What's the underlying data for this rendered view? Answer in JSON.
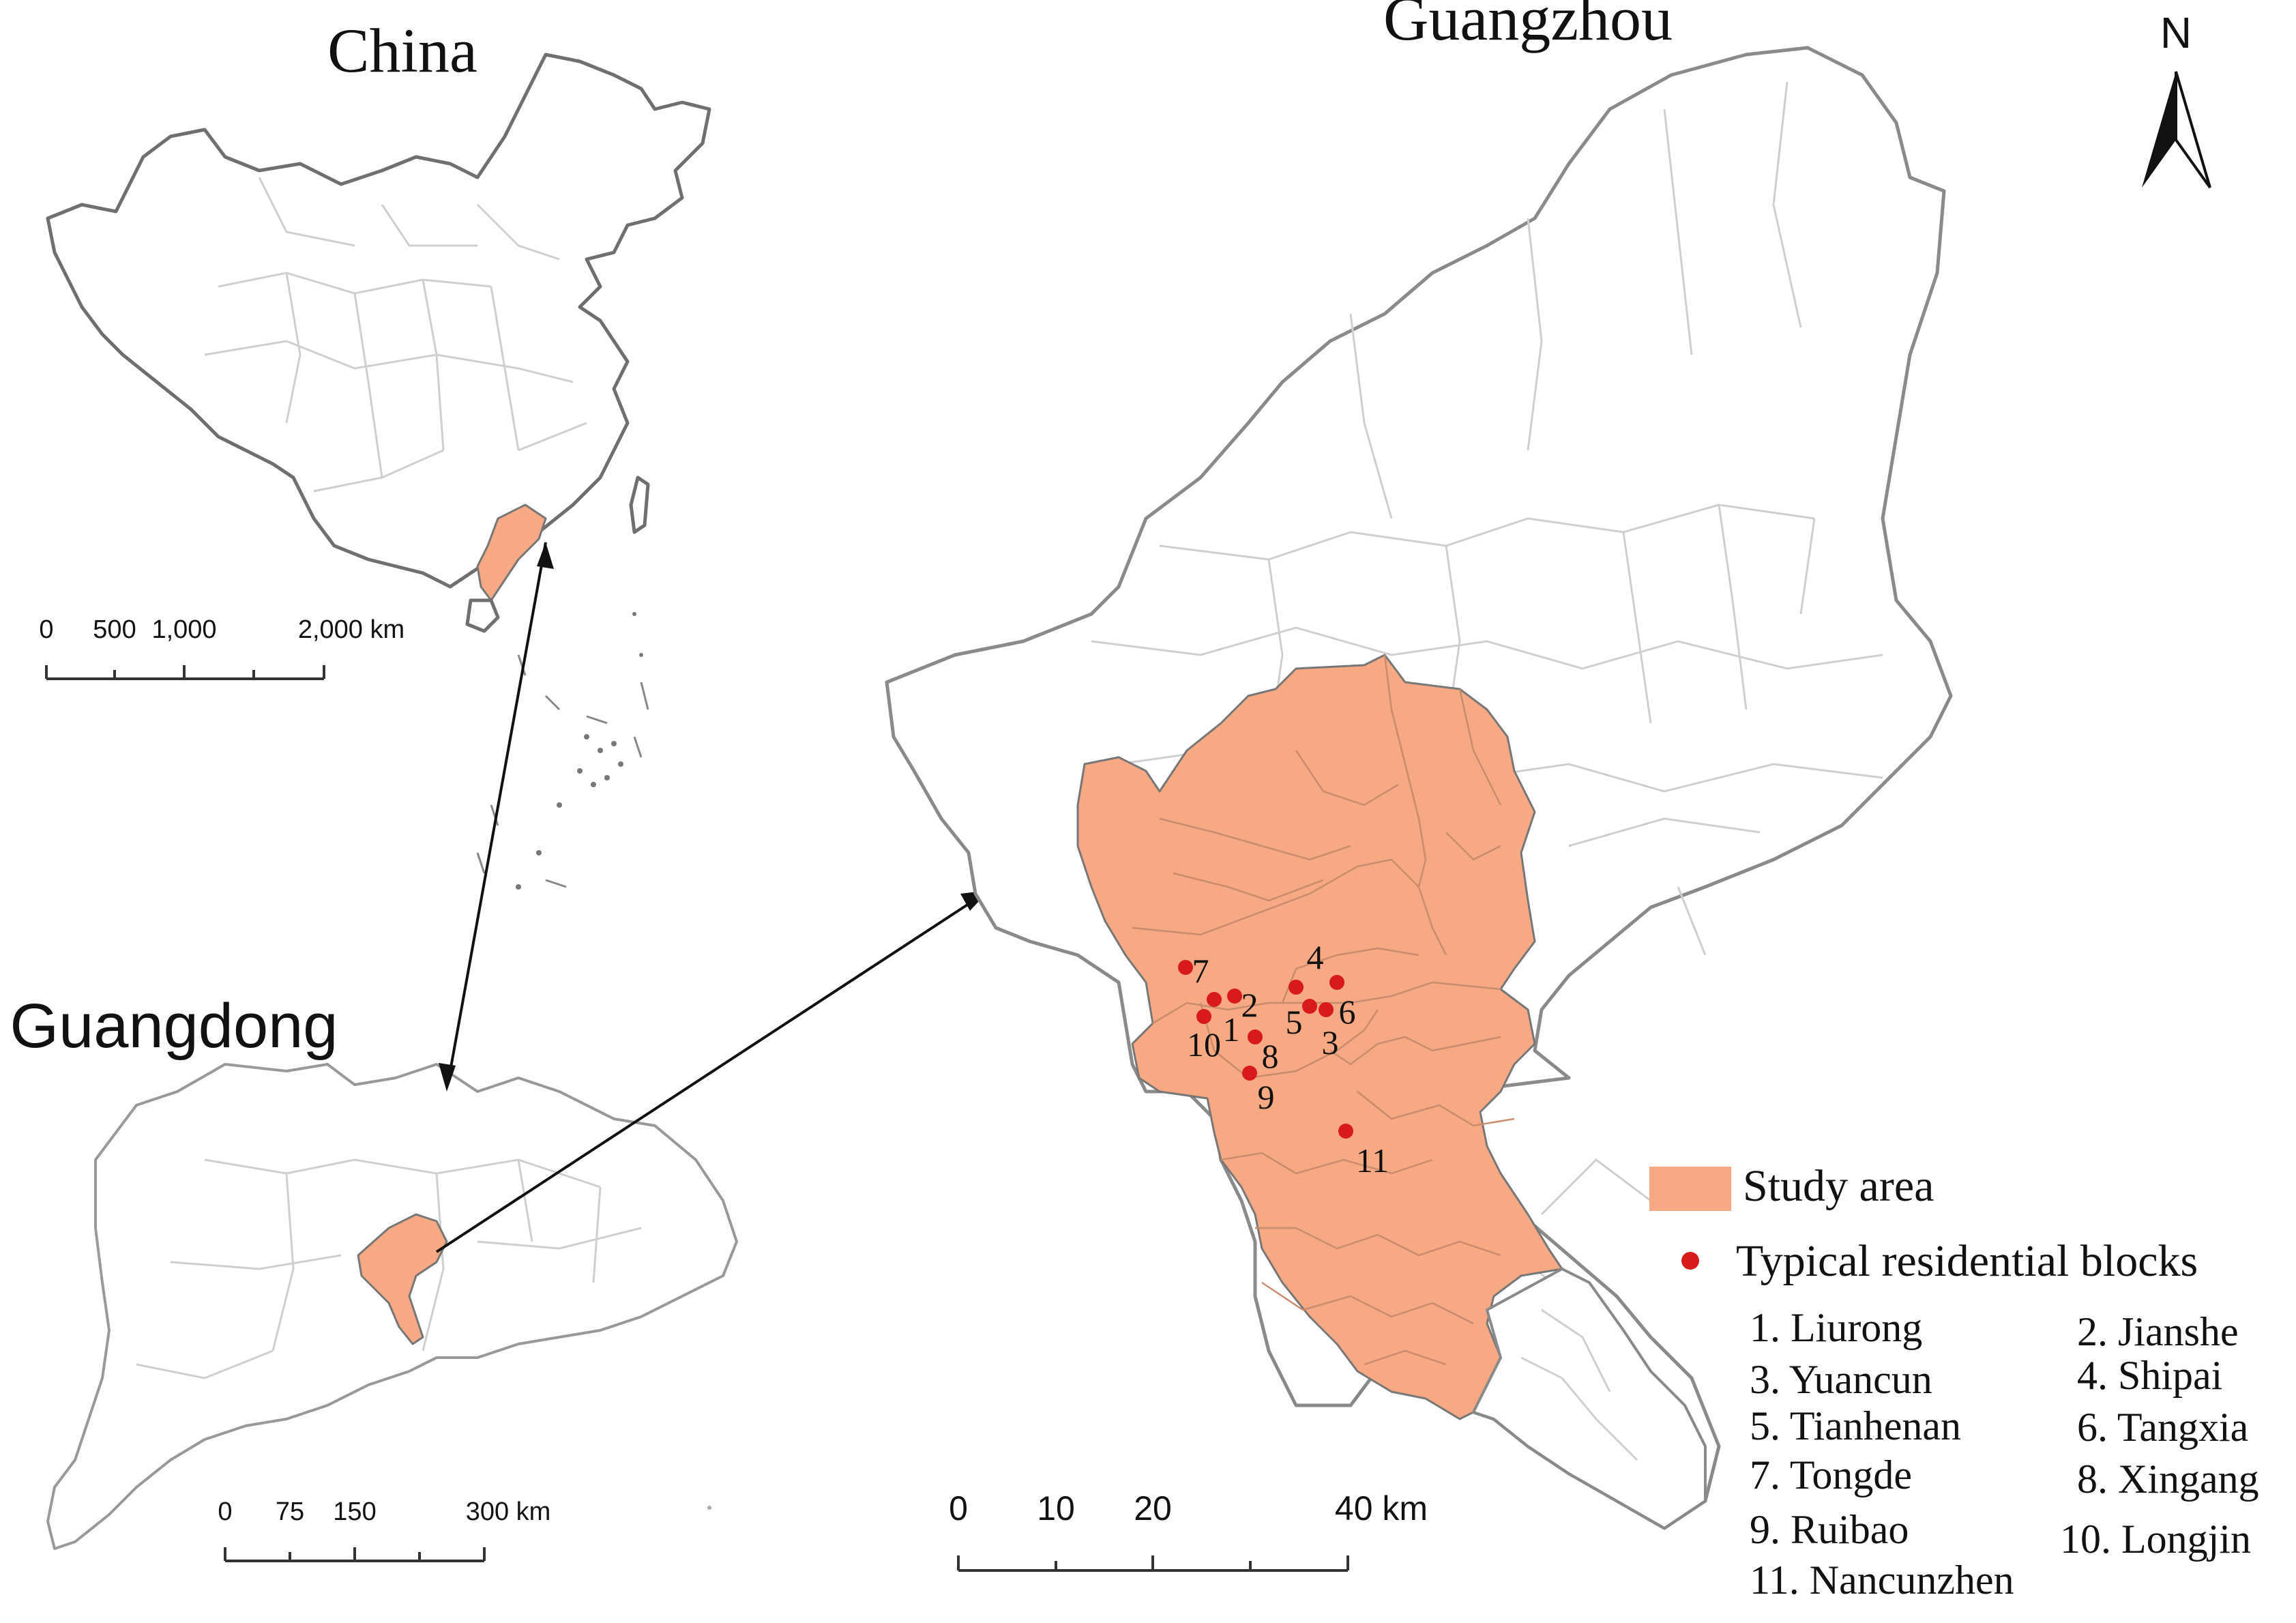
{
  "titles": {
    "china": "China",
    "guangzhou": "Guangzhou",
    "guangdong": "Guangdong"
  },
  "north_arrow": {
    "label": "N"
  },
  "scale_bars": {
    "china": {
      "ticks": [
        "0",
        "500",
        "1,000",
        "2,000 km"
      ]
    },
    "guangdong": {
      "ticks": [
        "0",
        "75",
        "150",
        "300 km"
      ]
    },
    "guangzhou": {
      "ticks": [
        "0",
        "10",
        "20",
        "40 km"
      ]
    }
  },
  "legend": {
    "study_area": "Study area",
    "blocks": "Typical residential blocks",
    "items": [
      "1. Liurong",
      "2. Jianshe",
      "3. Yuancun",
      "4. Shipai",
      "5. Tianhenan",
      "6. Tangxia",
      "7. Tongde",
      "8. Xingang",
      "9. Ruibao",
      "10. Longjin",
      "11. Nancunzhen"
    ]
  },
  "points": [
    {
      "id": "1",
      "label": "1"
    },
    {
      "id": "2",
      "label": "2"
    },
    {
      "id": "3",
      "label": "3"
    },
    {
      "id": "4",
      "label": "4"
    },
    {
      "id": "5",
      "label": "5"
    },
    {
      "id": "6",
      "label": "6"
    },
    {
      "id": "7",
      "label": "7"
    },
    {
      "id": "8",
      "label": "8"
    },
    {
      "id": "9",
      "label": "9"
    },
    {
      "id": "10",
      "label": "10"
    },
    {
      "id": "11",
      "label": "11"
    }
  ],
  "colors": {
    "study_area": "#f6a982",
    "point": "#d81a1a",
    "boundary": "#6f6f6f"
  }
}
